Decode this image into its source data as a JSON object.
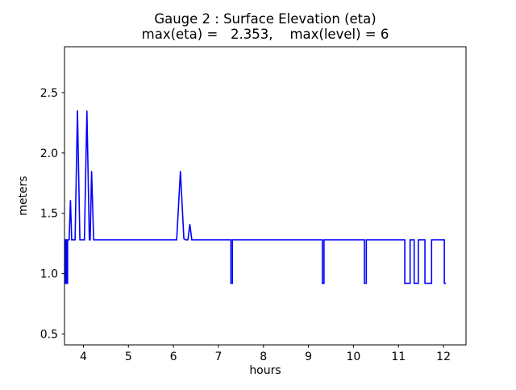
{
  "chart_data": {
    "type": "line",
    "title": "Gauge 2 : Surface Elevation (eta)",
    "subtitle": "max(eta) =   2.353,    max(level) = 6",
    "xlabel": "hours",
    "ylabel": "meters",
    "xlim": [
      3.58,
      12.5
    ],
    "ylim": [
      0.41,
      2.88
    ],
    "xticks": [
      4,
      5,
      6,
      7,
      8,
      9,
      10,
      11,
      12
    ],
    "yticks": [
      0.5,
      1.0,
      1.5,
      2.0,
      2.5
    ],
    "grid": false,
    "legend_position": "none",
    "background_color": "#ffffff",
    "spine_color": "#000000",
    "line_color": "#0000ff",
    "line_width": 1.6,
    "stats": {
      "max_eta": 2.353,
      "max_level": 6
    },
    "series": [
      {
        "name": "eta",
        "color": "#0000ff",
        "points": [
          [
            3.585,
            0.92
          ],
          [
            3.598,
            0.92
          ],
          [
            3.598,
            1.28
          ],
          [
            3.61,
            1.28
          ],
          [
            3.61,
            0.92
          ],
          [
            3.623,
            0.92
          ],
          [
            3.623,
            1.28
          ],
          [
            3.636,
            1.28
          ],
          [
            3.636,
            0.92
          ],
          [
            3.649,
            0.92
          ],
          [
            3.649,
            1.28
          ],
          [
            3.683,
            1.28
          ],
          [
            3.712,
            1.61
          ],
          [
            3.74,
            1.28
          ],
          [
            3.815,
            1.28
          ],
          [
            3.868,
            2.353
          ],
          [
            3.922,
            1.28
          ],
          [
            4.022,
            1.28
          ],
          [
            4.078,
            2.35
          ],
          [
            4.132,
            1.28
          ],
          [
            4.15,
            1.28
          ],
          [
            4.182,
            1.85
          ],
          [
            4.228,
            1.28
          ],
          [
            6.072,
            1.28
          ],
          [
            6.155,
            1.85
          ],
          [
            6.232,
            1.29
          ],
          [
            6.268,
            1.28
          ],
          [
            6.322,
            1.28
          ],
          [
            6.365,
            1.41
          ],
          [
            6.408,
            1.28
          ],
          [
            7.277,
            1.28
          ],
          [
            7.277,
            0.92
          ],
          [
            7.31,
            0.92
          ],
          [
            7.31,
            1.28
          ],
          [
            9.308,
            1.28
          ],
          [
            9.308,
            0.92
          ],
          [
            9.345,
            0.92
          ],
          [
            9.345,
            1.28
          ],
          [
            10.242,
            1.28
          ],
          [
            10.242,
            0.92
          ],
          [
            10.285,
            0.92
          ],
          [
            10.285,
            1.28
          ],
          [
            11.14,
            1.28
          ],
          [
            11.14,
            0.92
          ],
          [
            11.258,
            0.92
          ],
          [
            11.258,
            1.28
          ],
          [
            11.348,
            1.28
          ],
          [
            11.348,
            0.92
          ],
          [
            11.44,
            0.92
          ],
          [
            11.44,
            1.28
          ],
          [
            11.588,
            1.28
          ],
          [
            11.588,
            0.92
          ],
          [
            11.735,
            0.92
          ],
          [
            11.735,
            1.28
          ],
          [
            12.018,
            1.28
          ],
          [
            12.018,
            0.92
          ],
          [
            12.055,
            0.92
          ]
        ]
      }
    ]
  }
}
